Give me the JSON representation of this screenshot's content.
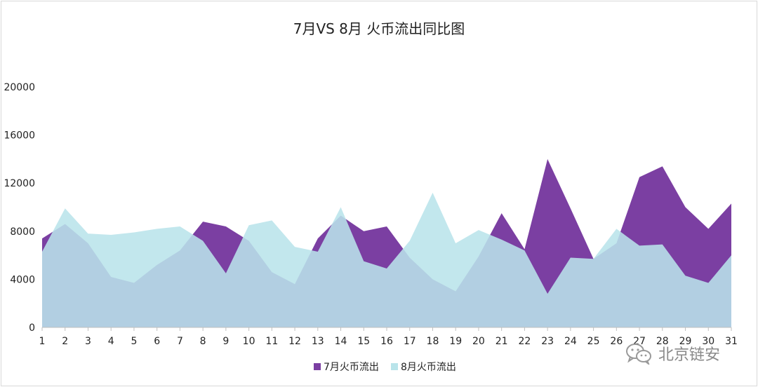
{
  "chart_data": {
    "type": "area",
    "title": "7月VS 8月 火币流出同比图",
    "xlabel": "",
    "ylabel": "",
    "x": [
      1,
      2,
      3,
      4,
      5,
      6,
      7,
      8,
      9,
      10,
      11,
      12,
      13,
      14,
      15,
      16,
      17,
      18,
      19,
      20,
      21,
      22,
      23,
      24,
      25,
      26,
      27,
      28,
      29,
      30,
      31
    ],
    "ylim": [
      0,
      20000
    ],
    "yticks": [
      0,
      4000,
      8000,
      12000,
      16000,
      20000
    ],
    "grid": false,
    "legend_position": "bottom",
    "series": [
      {
        "name": "7月火币流出",
        "color": "#7b3fa2",
        "values": [
          7400,
          8600,
          7000,
          4200,
          3700,
          5200,
          6400,
          8800,
          8400,
          7200,
          4600,
          3600,
          7400,
          9300,
          8000,
          8400,
          5800,
          4000,
          3000,
          5900,
          9500,
          6500,
          14000,
          9900,
          5700,
          7000,
          12500,
          13400,
          10000,
          8200,
          10300
        ]
      },
      {
        "name": "8月火币流出",
        "color": "#b9e4ea",
        "values": [
          6300,
          9900,
          7800,
          7700,
          7900,
          8200,
          8400,
          7200,
          4500,
          8500,
          8900,
          6700,
          6300,
          10000,
          5500,
          4900,
          7200,
          11200,
          7000,
          8100,
          7300,
          6400,
          2800,
          5800,
          5700,
          8200,
          6800,
          6900,
          4300,
          3700,
          6000
        ]
      }
    ]
  },
  "watermark": {
    "icon": "wechat-icon",
    "text": "北京链安"
  }
}
